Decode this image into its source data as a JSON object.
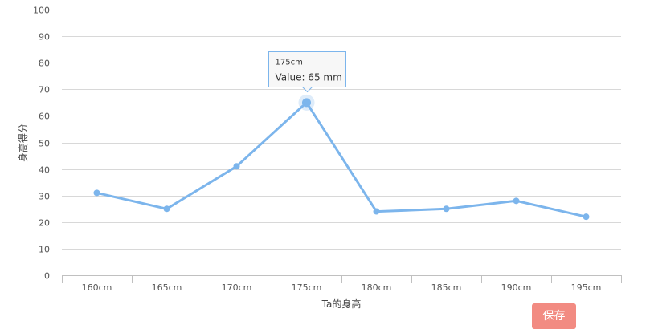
{
  "chart_data": {
    "type": "line",
    "xlabel": "Ta的身高",
    "ylabel": "身高得分",
    "categories": [
      "160cm",
      "165cm",
      "170cm",
      "175cm",
      "180cm",
      "185cm",
      "190cm",
      "195cm"
    ],
    "values": [
      31,
      25,
      41,
      65,
      24,
      25,
      28,
      22
    ],
    "ylim": [
      0,
      100
    ],
    "yticks": [
      0,
      10,
      20,
      30,
      40,
      50,
      60,
      70,
      80,
      90,
      100
    ],
    "grid": true,
    "line_color": "#7cb5ec",
    "tooltip": {
      "category": "175cm",
      "value_text": "Value: 65 mm"
    }
  },
  "save_button": {
    "label": "保存",
    "color": "#f28b82"
  }
}
